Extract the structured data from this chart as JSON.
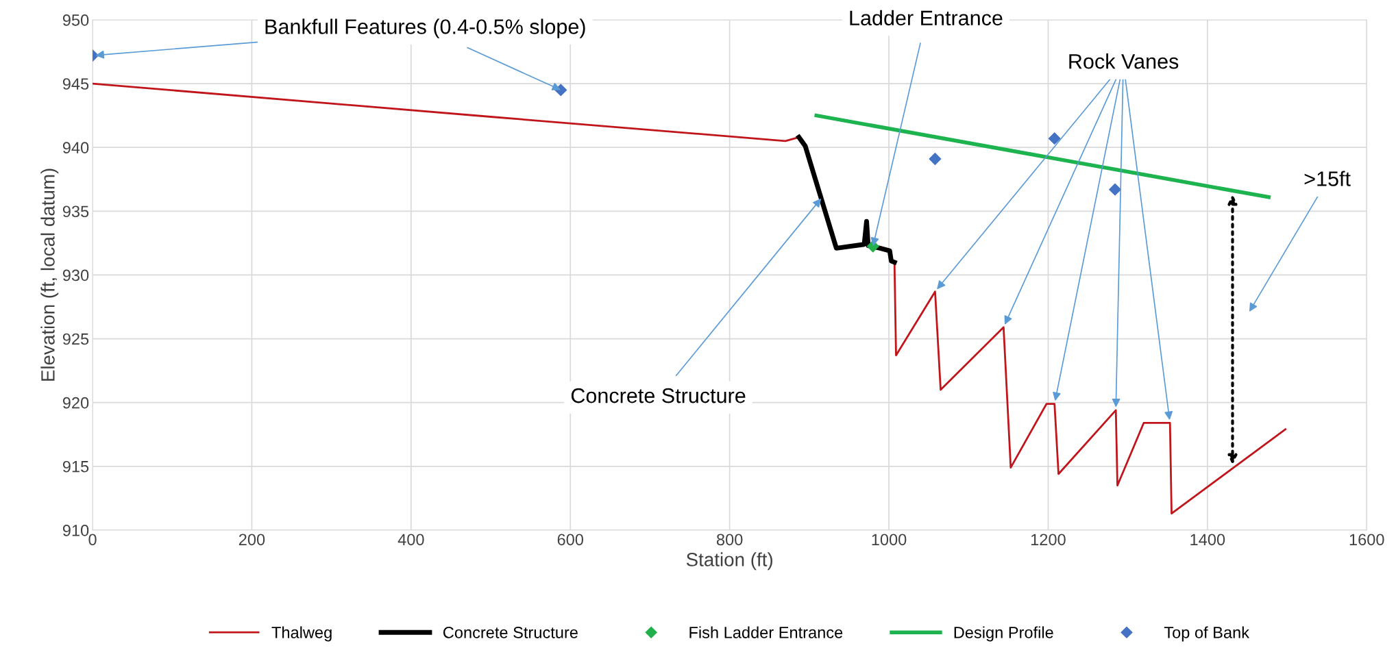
{
  "chart_data": {
    "type": "line",
    "xlabel": "Station (ft)",
    "ylabel": "Elevation (ft, local datum)",
    "xlim": [
      0,
      1600
    ],
    "xticks": [
      0,
      200,
      400,
      600,
      800,
      1000,
      1200,
      1400,
      1600
    ],
    "ylim": [
      910,
      950
    ],
    "yticks": [
      910,
      915,
      920,
      925,
      930,
      935,
      940,
      945,
      950
    ],
    "grid": true,
    "legend": "bottom",
    "series": [
      {
        "name": "Thalweg",
        "color": "#c0161b",
        "marker": "none",
        "line_style": "solid",
        "x": [
          0,
          500,
          870,
          887,
          960,
          1007,
          1009,
          1058,
          1065,
          1144,
          1153,
          1198,
          1208,
          1213,
          1285,
          1287,
          1320,
          1353,
          1355,
          1498
        ],
        "values": [
          945.0,
          942.4,
          940.5,
          940.8,
          null,
          931.0,
          923.7,
          928.7,
          921.0,
          925.9,
          914.9,
          919.9,
          919.9,
          914.4,
          919.4,
          913.5,
          918.4,
          918.4,
          911.3,
          917.9
        ]
      },
      {
        "name": "Concrete Structure",
        "color": "#000000",
        "marker": "none",
        "line_style": "solid",
        "x": [
          887,
          895,
          934,
          969,
          972,
          974,
          989,
          1001,
          1003,
          1007
        ],
        "values": [
          940.8,
          940.1,
          932.1,
          932.4,
          934.2,
          932.3,
          932.1,
          931.9,
          931.1,
          931.0
        ]
      },
      {
        "name": "Fish Ladder Entrance",
        "type": "scatter",
        "color": "#21b04b",
        "marker": "diamond",
        "x": [
          980
        ],
        "values": [
          932.25
        ]
      },
      {
        "name": "Design Profile",
        "color": "#1db34f",
        "marker": "none",
        "line_style": "solid",
        "x": [
          909,
          1477
        ],
        "values": [
          942.5,
          936.1
        ]
      },
      {
        "name": "Top of Bank",
        "type": "scatter",
        "color": "#4472c4",
        "marker": "diamond",
        "x": [
          0,
          588,
          1058,
          1208,
          1284
        ],
        "values": [
          947.2,
          944.5,
          939.1,
          940.7,
          936.7
        ]
      }
    ],
    "annotations": [
      {
        "text": "Bankfull Features (0.4-0.5% slope)",
        "x": 588,
        "y": 944.5
      },
      {
        "text": "Ladder Entrance",
        "x": 980,
        "y": 932.25
      },
      "Rock Vanes",
      {
        "text": "Concrete Structure",
        "x": 915,
        "y": 936.0
      },
      ">15ft"
    ]
  }
}
